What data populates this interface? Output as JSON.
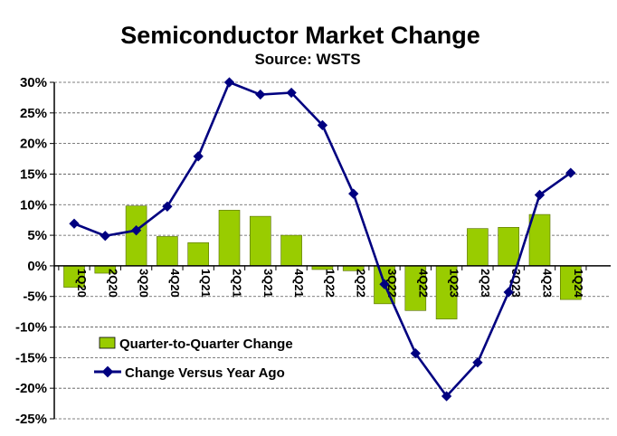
{
  "chart_data": {
    "type": "bar",
    "title": "Semiconductor Market Change",
    "subtitle": "Source: WSTS",
    "categories": [
      "1Q20",
      "2Q20",
      "3Q20",
      "4Q20",
      "1Q21",
      "2Q21",
      "3Q21",
      "4Q21",
      "1Q22",
      "2Q22",
      "3Q22",
      "4Q22",
      "1Q23",
      "2Q23",
      "3Q23",
      "4Q23",
      "1Q24"
    ],
    "yticks": [
      "30%",
      "25%",
      "20%",
      "15%",
      "10%",
      "5%",
      "0%",
      "-5%",
      "-10%",
      "-15%",
      "-20%",
      "-25%"
    ],
    "ylim": [
      -25,
      30
    ],
    "grid": true,
    "legend_position": "lower-left",
    "series": [
      {
        "name": "Quarter-to-Quarter Change",
        "type": "bar",
        "color": "#99cc00",
        "values": [
          -3.5,
          -1.2,
          9.8,
          4.8,
          3.8,
          9.1,
          8.1,
          5.0,
          -0.6,
          -0.8,
          -6.2,
          -7.3,
          -8.7,
          6.1,
          6.3,
          8.4,
          -5.5
        ]
      },
      {
        "name": "Change Versus Year Ago",
        "type": "line",
        "color": "#000080",
        "values": [
          6.9,
          4.9,
          5.8,
          9.7,
          17.9,
          30.0,
          28.0,
          28.3,
          23.0,
          11.8,
          -3.0,
          -14.3,
          -21.3,
          -15.8,
          -4.3,
          11.6,
          15.2
        ]
      }
    ]
  }
}
